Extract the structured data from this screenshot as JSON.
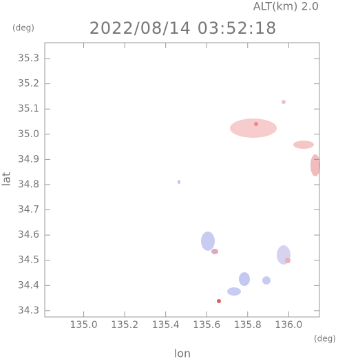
{
  "chart_data": {
    "type": "map",
    "title": "2022/08/14 03:52:18",
    "altitude_label": "ALT(km) 2.0",
    "y_unit": "(deg)",
    "x_unit": "(deg)",
    "x_label": "lon",
    "y_label": "lat",
    "xlim": [
      134.81,
      136.15
    ],
    "ylim": [
      34.275,
      35.363
    ],
    "xticks": [
      {
        "value": 135,
        "label": "135.0"
      },
      135.2,
      135.4,
      135.6,
      135.8,
      {
        "value": 136,
        "label": "136.0"
      }
    ],
    "yticks": [
      34.3,
      34.4,
      34.5,
      34.6,
      34.7,
      34.8,
      34.9,
      {
        "value": 35,
        "label": "35.0"
      },
      35.1,
      35.2,
      35.3
    ]
  }
}
